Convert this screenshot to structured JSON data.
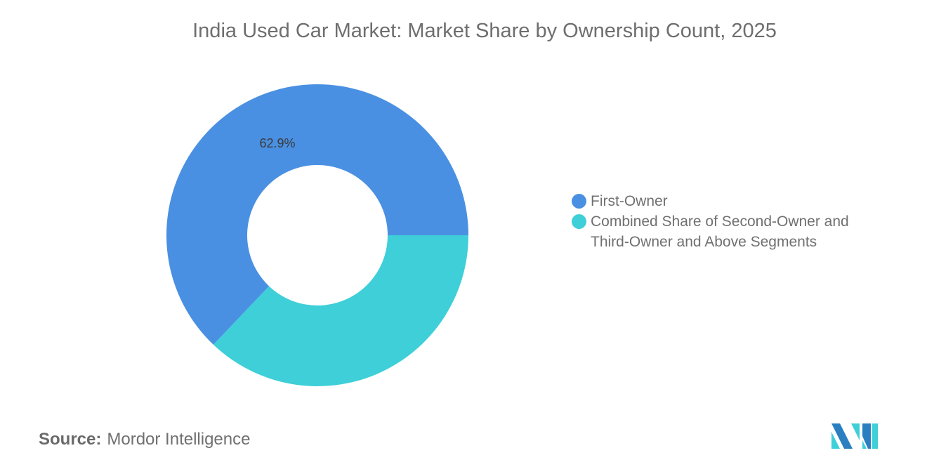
{
  "chart_data": {
    "type": "pie",
    "variant": "donut",
    "title": "India Used Car Market: Market Share by Ownership Count, 2025",
    "categories": [
      "First-Owner",
      "Combined Share of Second-Owner and Third-Owner and Above Segments"
    ],
    "values": [
      62.9,
      37.1
    ],
    "unit": "%",
    "data_labels": [
      "62.9%"
    ],
    "colors": [
      "#4a90e2",
      "#3ecfd8"
    ],
    "legend_position": "right"
  },
  "source": {
    "label": "Source:",
    "value": "Mordor Intelligence"
  },
  "logo": {
    "text": "Mordor Intelligence",
    "colors": [
      "#2a7fc1",
      "#3ecfd8"
    ]
  }
}
